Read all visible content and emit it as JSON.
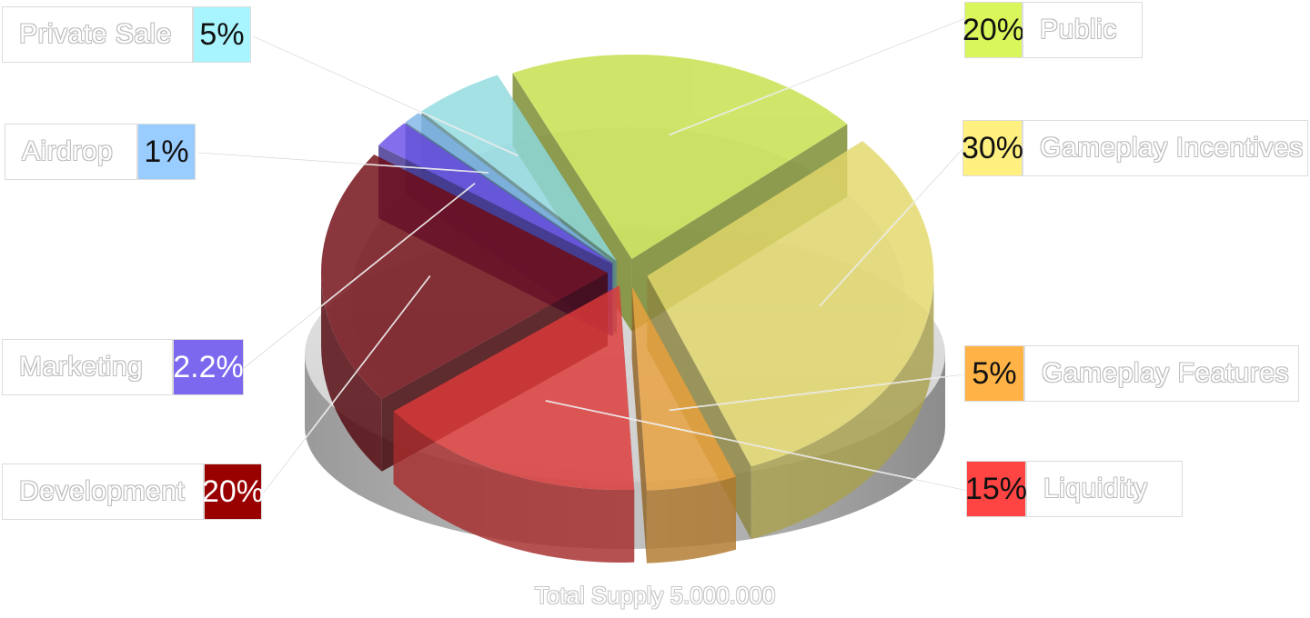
{
  "chart_data": {
    "type": "pie",
    "title": "",
    "footer": "Total Supply 5.000.000",
    "slices": [
      {
        "label": "Public",
        "value": 20,
        "value_label": "20%",
        "color": "#c5e04a",
        "label_color": "#d9f75a"
      },
      {
        "label": "Gameplay Incentives",
        "value": 30,
        "value_label": "30%",
        "color": "#e3d86b",
        "label_color": "#fff080"
      },
      {
        "label": "Gameplay Features",
        "value": 5,
        "value_label": "5%",
        "color": "#eaa23d",
        "label_color": "#ffb347"
      },
      {
        "label": "Liquidity",
        "value": 15,
        "value_label": "15%",
        "color": "#de3a3a",
        "label_color": "#ff4444"
      },
      {
        "label": "Development",
        "value": 20,
        "value_label": "20%",
        "color": "#700a12",
        "label_color": "#990000"
      },
      {
        "label": "Marketing",
        "value": 2.2,
        "value_label": "2.2%",
        "color": "#6a4fe8",
        "label_color": "#7b68ee"
      },
      {
        "label": "Airdrop",
        "value": 1,
        "value_label": "1%",
        "color": "#7fb5e8",
        "label_color": "#99ccff"
      },
      {
        "label": "Private Sale",
        "value": 5,
        "value_label": "5%",
        "color": "#8fdbe0",
        "label_color": "#a8f5ff"
      }
    ]
  }
}
